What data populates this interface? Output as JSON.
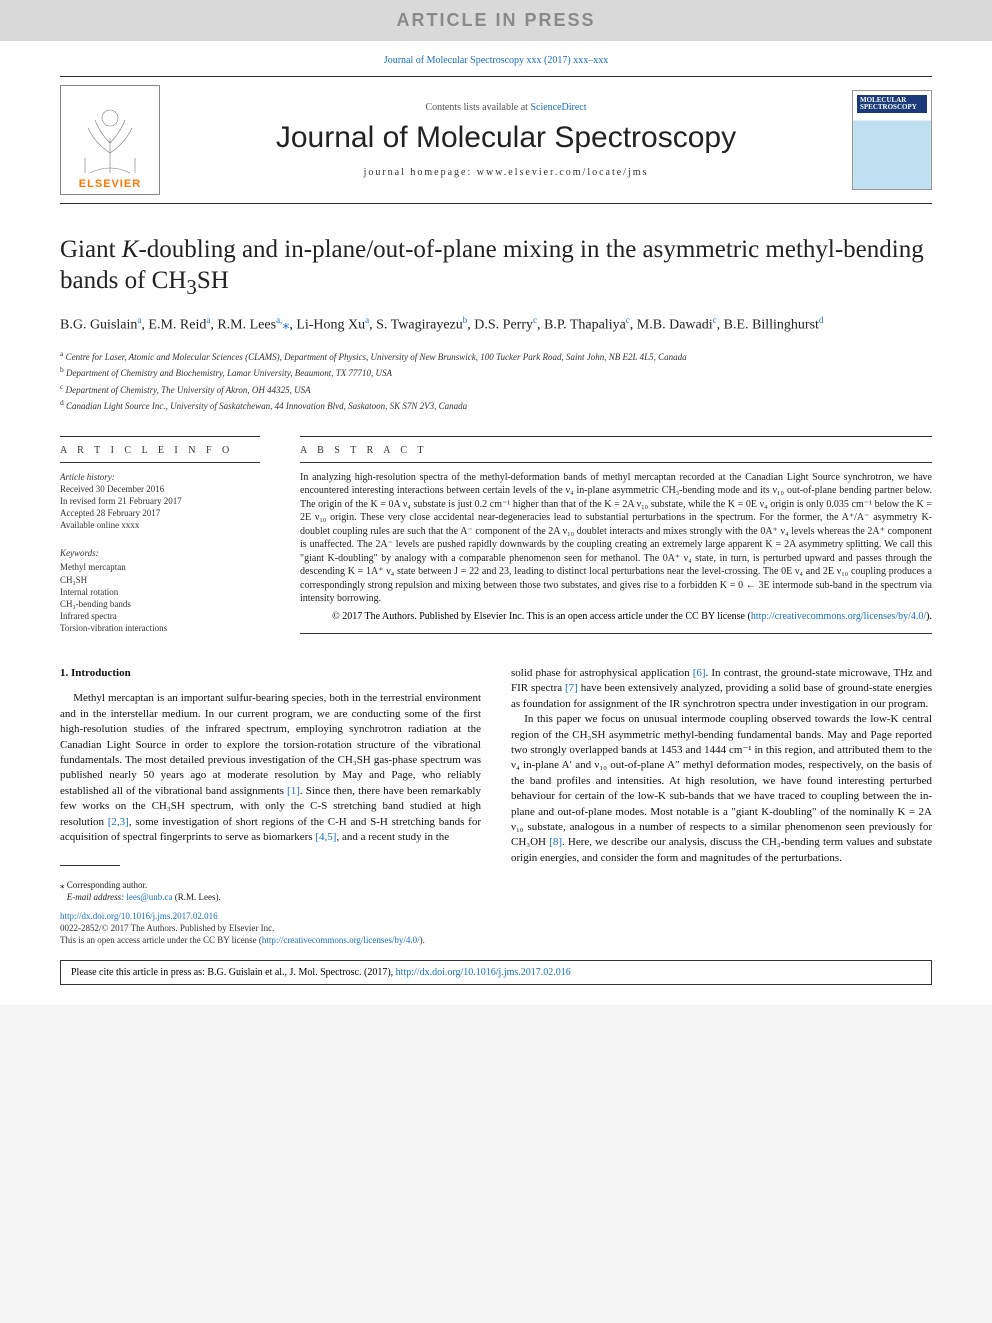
{
  "colors": {
    "link": "#1a6fc4",
    "elsevier_orange": "#ff7700",
    "banner_bg": "#d9d9d9",
    "banner_text": "#8a8a8a"
  },
  "banner": {
    "text": "ARTICLE IN PRESS"
  },
  "top_citation": "Journal of Molecular Spectroscopy xxx (2017) xxx–xxx",
  "masthead": {
    "contents_text_pre": "Contents lists available at ",
    "contents_link": "ScienceDirect",
    "journal_title": "Journal of Molecular Spectroscopy",
    "homepage_label": "journal homepage: www.elsevier.com/locate/jms",
    "publisher_logo_text": "ELSEVIER",
    "cover_label": "MOLECULAR SPECTROSCOPY"
  },
  "paper": {
    "title": "Giant K-doubling and in-plane/out-of-plane mixing in the asymmetric methyl-bending bands of CH₃SH",
    "authors_html": "B.G. Guislain",
    "authors": [
      {
        "name": "B.G. Guislain",
        "aff": "a"
      },
      {
        "name": "E.M. Reid",
        "aff": "a"
      },
      {
        "name": "R.M. Lees",
        "aff": "a",
        "corr": true
      },
      {
        "name": "Li-Hong Xu",
        "aff": "a"
      },
      {
        "name": "S. Twagirayezu",
        "aff": "b"
      },
      {
        "name": "D.S. Perry",
        "aff": "c"
      },
      {
        "name": "B.P. Thapaliya",
        "aff": "c"
      },
      {
        "name": "M.B. Dawadi",
        "aff": "c"
      },
      {
        "name": "B.E. Billinghurst",
        "aff": "d"
      }
    ],
    "affiliations": [
      {
        "key": "a",
        "text": "Centre for Laser, Atomic and Molecular Sciences (CLAMS), Department of Physics, University of New Brunswick, 100 Tucker Park Road, Saint John, NB E2L 4L5, Canada"
      },
      {
        "key": "b",
        "text": "Department of Chemistry and Biochemistry, Lamar University, Beaumont, TX 77710, USA"
      },
      {
        "key": "c",
        "text": "Department of Chemistry, The University of Akron, OH 44325, USA"
      },
      {
        "key": "d",
        "text": "Canadian Light Source Inc., University of Saskatchewan, 44 Innovation Blvd, Saskatoon, SK S7N 2V3, Canada"
      }
    ]
  },
  "article_info": {
    "heading": "A R T I C L E   I N F O",
    "history_label": "Article history:",
    "history": [
      "Received 30 December 2016",
      "In revised form 21 February 2017",
      "Accepted 28 February 2017",
      "Available online xxxx"
    ],
    "keywords_label": "Keywords:",
    "keywords": [
      "Methyl mercaptan",
      "CH₃SH",
      "Internal rotation",
      "CH₃-bending bands",
      "Infrared spectra",
      "Torsion-vibration interactions"
    ]
  },
  "abstract": {
    "heading": "A B S T R A C T",
    "text": "In analyzing high-resolution spectra of the methyl-deformation bands of methyl mercaptan recorded at the Canadian Light Source synchrotron, we have encountered interesting interactions between certain levels of the ν₄ in-plane asymmetric CH₃-bending mode and its ν₁₀ out-of-plane bending partner below. The origin of the K = 0A ν₄ substate is just 0.2 cm⁻¹ higher than that of the K = 2A ν₁₀ substate, while the K = 0E ν₄ origin is only 0.035 cm⁻¹ below the K = 2E ν₁₀ origin. These very close accidental near-degeneracies lead to substantial perturbations in the spectrum. For the former, the A⁺/A⁻ asymmetry K-doublet coupling rules are such that the A⁻ component of the 2A ν₁₀ doublet interacts and mixes strongly with the 0A⁺ ν₄ levels whereas the 2A⁺ component is unaffected. The 2A⁻ levels are pushed rapidly downwards by the coupling creating an extremely large apparent K = 2A asymmetry splitting. We call this \"giant K-doubling\" by analogy with a comparable phenomenon seen for methanol. The 0A⁺ ν₄ state, in turn, is perturbed upward and passes through the descending K = 1A⁺ ν₄ state between J = 22 and 23, leading to distinct local perturbations near the level-crossing. The 0E ν₄ and 2E ν₁₀ coupling produces a correspondingly strong repulsion and mixing between those two substates, and gives rise to a forbidden K = 0 ← 3E intermode sub-band in the spectrum via intensity borrowing.",
    "copyright_pre": "© 2017 The Authors. Published by Elsevier Inc. This is an open access article under the CC BY license (",
    "copyright_link": "http://creativecommons.org/licenses/by/4.0/",
    "copyright_post": ")."
  },
  "body": {
    "section_heading": "1. Introduction",
    "col1_p1": "Methyl mercaptan is an important sulfur-bearing species, both in the terrestrial environment and in the interstellar medium. In our current program, we are conducting some of the first high-resolution studies of the infrared spectrum, employing synchrotron radiation at the Canadian Light Source in order to explore the torsion-rotation structure of the vibrational fundamentals. The most detailed previous investigation of the CH₃SH gas-phase spectrum was published nearly 50 years ago at moderate resolution by May and Page, who reliably established all of the vibrational band assignments ",
    "ref1": "[1]",
    "col1_p1b": ". Since then, there have been remarkably few works on the CH₃SH spectrum, with only the C-S stretching band studied at high resolution ",
    "ref23": "[2,3]",
    "col1_p1c": ", some investigation of short regions of the C-H and S-H stretching bands for acquisition of spectral fingerprints to serve as biomarkers ",
    "ref45": "[4,5]",
    "col1_p1d": ", and a recent study in the",
    "col2_p1a": "solid phase for astrophysical application ",
    "ref6": "[6]",
    "col2_p1b": ". In contrast, the ground-state microwave, THz and FIR spectra ",
    "ref7": "[7]",
    "col2_p1c": " have been extensively analyzed, providing a solid base of ground-state energies as foundation for assignment of the IR synchrotron spectra under investigation in our program.",
    "col2_p2a": "In this paper we focus on unusual intermode coupling observed towards the low-K central region of the CH₃SH asymmetric methyl-bending fundamental bands. May and Page reported two strongly overlapped bands at 1453 and 1444 cm⁻¹ in this region, and attributed them to the ν₄ in-plane A′ and ν₁₀ out-of-plane A″ methyl deformation modes, respectively, on the basis of the band profiles and intensities. At high resolution, we have found interesting perturbed behaviour for certain of the low-K sub-bands that we have traced to coupling between the in-plane and out-of-plane modes. Most notable is a \"giant K-doubling\" of the nominally K = 2A ν₁₀ substate, analogous in a number of respects to a similar phenomenon seen previously for CH₃OH ",
    "ref8": "[8]",
    "col2_p2b": ". Here, we describe our analysis, discuss the CH₃-bending term values and substate origin energies, and consider the form and magnitudes of the perturbations."
  },
  "footnotes": {
    "corr_label": "⁎ Corresponding author.",
    "email_label": "E-mail address: ",
    "email": "lees@unb.ca",
    "email_name": " (R.M. Lees)."
  },
  "doi_block": {
    "doi": "http://dx.doi.org/10.1016/j.jms.2017.02.016",
    "issn_line": "0022-2852/© 2017 The Authors. Published by Elsevier Inc.",
    "oa_pre": "This is an open access article under the CC BY license (",
    "oa_link": "http://creativecommons.org/licenses/by/4.0/",
    "oa_post": ")."
  },
  "cite_box": {
    "pre": "Please cite this article in press as: B.G. Guislain et al., J. Mol. Spectrosc. (2017), ",
    "link": "http://dx.doi.org/10.1016/j.jms.2017.02.016"
  }
}
